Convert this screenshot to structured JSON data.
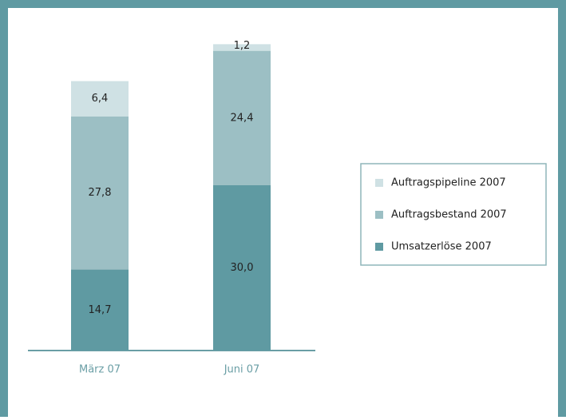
{
  "chart_data": {
    "type": "stacked_bar",
    "categories": [
      "März 07",
      "Juni 07"
    ],
    "series": [
      {
        "name": "Umsatzerlöse 2007",
        "color": "#5f9aa2",
        "values": [
          14.7,
          30.0
        ],
        "value_labels": [
          "14,7",
          "30,0"
        ]
      },
      {
        "name": "Auftragsbestand 2007",
        "color": "#9cbfc4",
        "values": [
          27.8,
          24.4
        ],
        "value_labels": [
          "27,8",
          "24,4"
        ]
      },
      {
        "name": "Auftragspipeline 2007",
        "color": "#cfe1e4",
        "values": [
          6.4,
          1.2
        ],
        "value_labels": [
          "6,4",
          "1,2"
        ]
      }
    ],
    "ylim": [
      0,
      60
    ]
  }
}
